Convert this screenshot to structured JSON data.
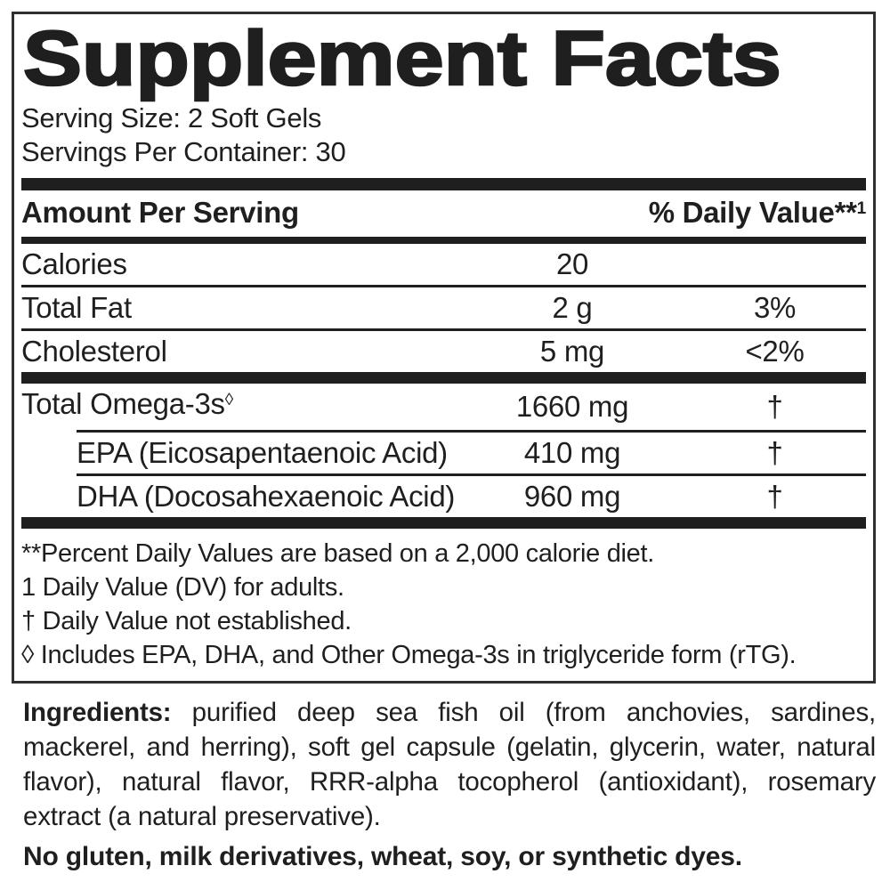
{
  "label": {
    "title": "Supplement Facts",
    "serving_size": "Serving Size: 2 Soft Gels",
    "servings_per_container": "Servings Per Container: 30",
    "header": {
      "amount_label": "Amount Per Serving",
      "dv_label": "% Daily Value**",
      "dv_sup": "1"
    },
    "rows": [
      {
        "name": "Calories",
        "amount": "20",
        "dv": ""
      },
      {
        "name": "Total Fat",
        "amount": "2 g",
        "dv": "3%"
      },
      {
        "name": "Cholesterol",
        "amount": "5 mg",
        "dv": "<2%"
      },
      {
        "name": "Total Omega-3s",
        "name_sup": "◊",
        "amount": "1660 mg",
        "dv": "†"
      },
      {
        "name": "EPA (Eicosapentaenoic Acid)",
        "amount": "410 mg",
        "dv": "†"
      },
      {
        "name": "DHA (Docosahexaenoic Acid)",
        "amount": "960 mg",
        "dv": "†"
      }
    ],
    "footnotes": [
      "**Percent Daily Values are based on a 2,000 calorie diet.",
      "1 Daily Value (DV) for adults.",
      "† Daily Value not established.",
      "◊ Includes EPA, DHA, and Other Omega-3s in triglyceride form (rTG)."
    ],
    "ingredients": {
      "label": "Ingredients:",
      "text": "purified deep sea fish oil (from anchovies, sardines, mackerel, and herring), soft gel capsule (gelatin, glycerin, water, natural flavor), natural flavor, RRR-alpha tocopherol (antioxidant), rosemary extract (a natural preservative)."
    },
    "allergen_statement": "No gluten, milk derivatives, wheat, soy, or synthetic dyes.",
    "colors": {
      "ink": "#1f1f1f",
      "background": "#ffffff"
    }
  }
}
